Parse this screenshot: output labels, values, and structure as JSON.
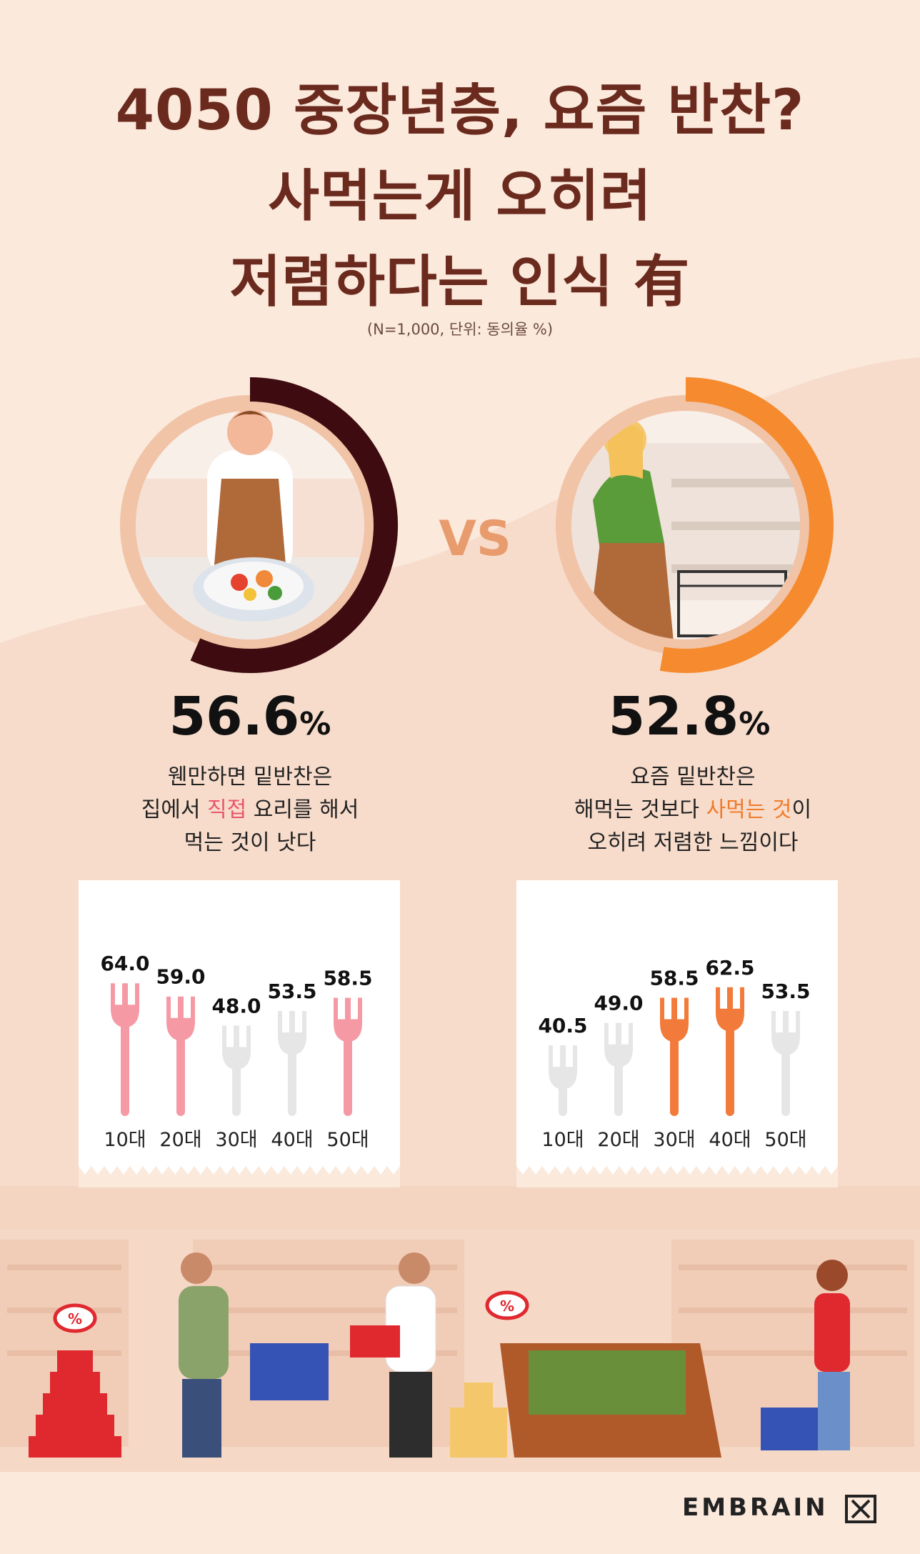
{
  "title_lines": [
    "4050 중장년층, 요즘 반찬?",
    "사먹는게 오히려",
    "저렴하다는 인식 有"
  ],
  "note": "(N=1,000, 단위: 동의율 %)",
  "vs": "VS",
  "left": {
    "percent": "56.6",
    "unit": "%",
    "ring_color": "#3d0b10",
    "desc": {
      "line1": "웬만하면 밑반찬은",
      "line2_pre": "집에서 ",
      "line2_hl": "직접",
      "line2_post": " 요리를 해서",
      "line3": "먹는 것이 낫다"
    }
  },
  "right": {
    "percent": "52.8",
    "unit": "%",
    "ring_color": "#f58a2e",
    "desc": {
      "line1": "요즘 밑반찬은",
      "line2_pre": "해먹는 것보다 ",
      "line2_hl": "사먹는 것",
      "line2_post": "이",
      "line3": "오히려 저렴한 느낌이다"
    }
  },
  "chart_data": [
    {
      "type": "bar",
      "title": "",
      "categories": [
        "10대",
        "20대",
        "30대",
        "40대",
        "50대"
      ],
      "values": [
        64.0,
        59.0,
        48.0,
        53.5,
        58.5
      ],
      "highlighted": [
        true,
        true,
        false,
        false,
        true
      ],
      "highlight_color": "#f59aa4",
      "base_color": "#e6e6e6",
      "unit": "%"
    },
    {
      "type": "bar",
      "title": "",
      "categories": [
        "10대",
        "20대",
        "30대",
        "40대",
        "50대"
      ],
      "values": [
        40.5,
        49.0,
        58.5,
        62.5,
        53.5
      ],
      "highlighted": [
        false,
        false,
        true,
        true,
        false
      ],
      "highlight_color": "#f27a3a",
      "base_color": "#e6e6e6",
      "unit": "%"
    }
  ],
  "logo": "EMBRAIN",
  "sale_tag": "%"
}
